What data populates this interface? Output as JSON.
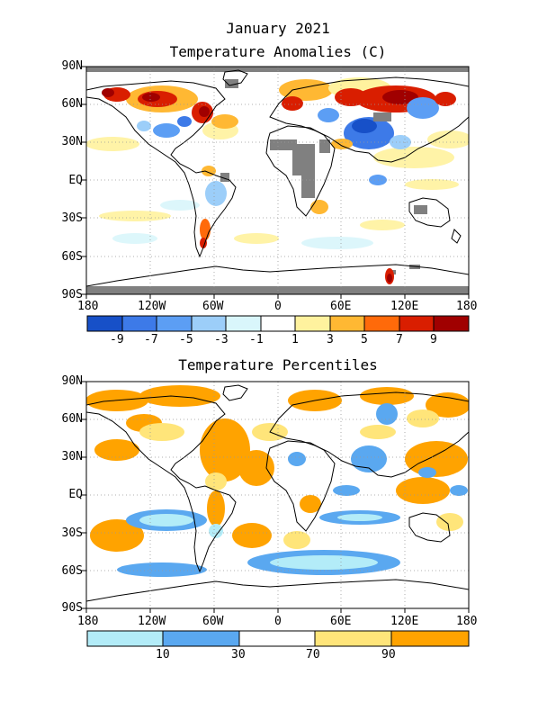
{
  "title_main": "January 2021",
  "title_anom": "Temperature Anomalies (C)",
  "title_pct": "Temperature Percentiles",
  "lat_labels": [
    "90N",
    "60N",
    "30N",
    "EQ",
    "30S",
    "60S",
    "90S"
  ],
  "lon_labels": [
    "180",
    "120W",
    "60W",
    "0",
    "60E",
    "120E",
    "180"
  ],
  "anom_colors": [
    "#1750c8",
    "#3d7ae8",
    "#5c9ef4",
    "#9ccef9",
    "#d9f6fb",
    "#ffffff",
    "#fff29e",
    "#ffb833",
    "#ff6a0a",
    "#d91e00",
    "#a00000"
  ],
  "anom_labels": [
    "-9",
    "-7",
    "-5",
    "-3",
    "-1",
    "1",
    "3",
    "5",
    "7",
    "9"
  ],
  "pct_colors": [
    "#b3ecf8",
    "#5aa8f0",
    "#ffffff",
    "#ffe57a",
    "#ffa300"
  ],
  "pct_labels": [
    "10",
    "30",
    "70",
    "90"
  ]
}
